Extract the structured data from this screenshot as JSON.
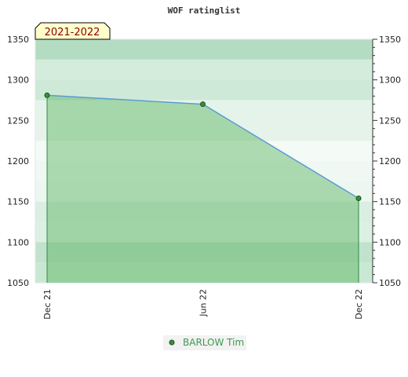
{
  "chart_data": {
    "type": "area",
    "title": "WOF ratinglist",
    "season_label": "2021-2022",
    "xlabel": "",
    "ylabel": "",
    "x_ticks": [
      "Dec 21",
      "Jun 22",
      "Dec 22"
    ],
    "ylim": [
      1050,
      1350
    ],
    "y_ticks": [
      1050,
      1100,
      1150,
      1200,
      1250,
      1300,
      1350
    ],
    "legend_position": "bottom-center",
    "series": [
      {
        "name": "BARLOW Tim",
        "x": [
          "Dec 21",
          "Jun 22",
          "Dec 22"
        ],
        "values": [
          1281,
          1270,
          1154
        ]
      }
    ]
  },
  "colors": {
    "line": "#5b9bd5",
    "fill": "#4caf50",
    "marker": "#3a8f3a",
    "band_dark": "#b3dcc2",
    "band_light": "#ffffff"
  }
}
